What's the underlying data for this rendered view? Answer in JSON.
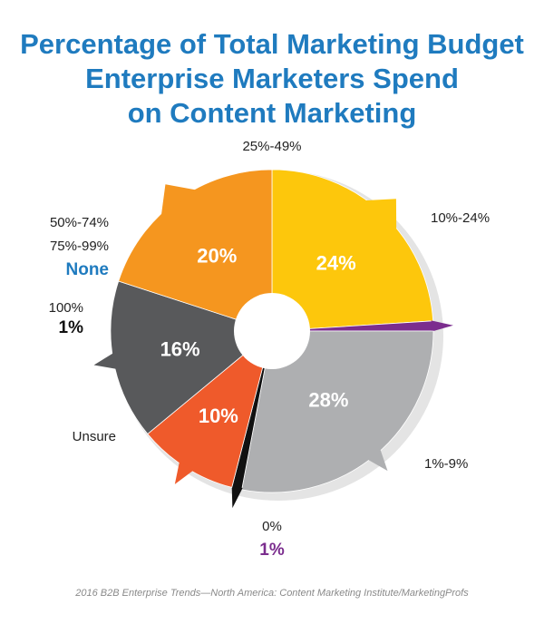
{
  "chart_data": {
    "type": "pie",
    "title_lines": [
      "Percentage of Total Marketing Budget",
      "Enterprise Marketers Spend",
      "on Content Marketing"
    ],
    "slices": [
      {
        "category": "1%-9%",
        "value": 24,
        "label": "24%",
        "color": "#fdc70c"
      },
      {
        "category": "0%",
        "value": 1,
        "label": "1%",
        "color": "#7b2d8e"
      },
      {
        "category": "Unsure",
        "value": 28,
        "label": "28%",
        "color": "#aeafb1"
      },
      {
        "category": "100%",
        "value": 1,
        "label": "1%",
        "color": "#111111"
      },
      {
        "category": "75%-99%",
        "value": 0,
        "label": "None",
        "color": "#1f7bbf"
      },
      {
        "category": "50%-74%",
        "value": 10,
        "label": "10%",
        "color": "#ef5a2b"
      },
      {
        "category": "25%-49%",
        "value": 16,
        "label": "16%",
        "color": "#58595b"
      },
      {
        "category": "10%-24%",
        "value": 20,
        "label": "20%",
        "color": "#f5961f"
      }
    ]
  },
  "source": "2016 B2B Enterprise Trends—North America: Content Marketing Institute/MarketingProfs"
}
